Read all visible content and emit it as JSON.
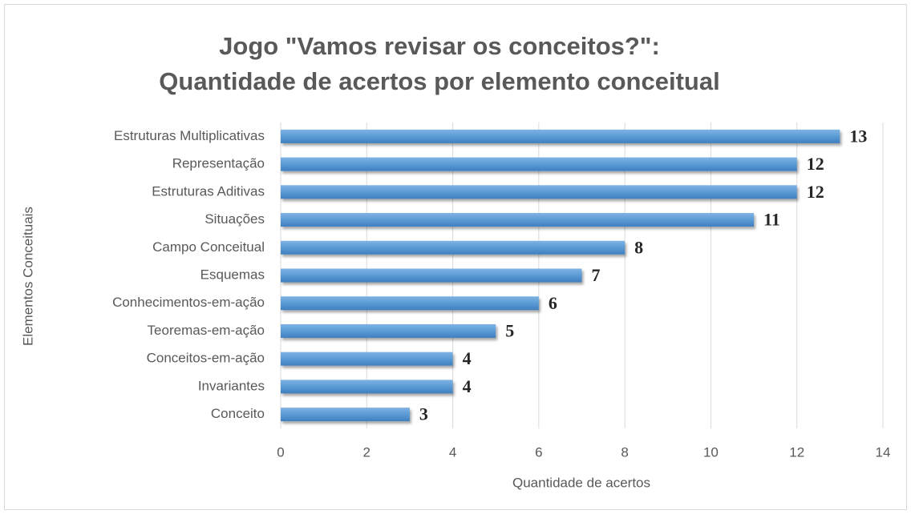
{
  "chart_data": {
    "type": "bar",
    "orientation": "horizontal",
    "title": [
      "Jogo \"Vamos revisar os conceitos?\":",
      "Quantidade de acertos por elemento conceitual"
    ],
    "x_label": "Quantidade de acertos",
    "y_label": "Elementos Conceituais",
    "categories": [
      "Estruturas Multiplicativas",
      "Representação",
      "Estruturas Aditivas",
      "Situações",
      "Campo Conceitual",
      "Esquemas",
      "Conhecimentos-em-ação",
      "Teoremas-em-ação",
      "Conceitos-em-ação",
      "Invariantes",
      "Conceito"
    ],
    "values": [
      13,
      12,
      12,
      11,
      8,
      7,
      6,
      5,
      4,
      4,
      3
    ],
    "color": "#5b9bd5",
    "xlim": [
      0,
      14
    ],
    "xticks": [
      0,
      2,
      4,
      6,
      8,
      10,
      12,
      14
    ],
    "grid": true
  }
}
